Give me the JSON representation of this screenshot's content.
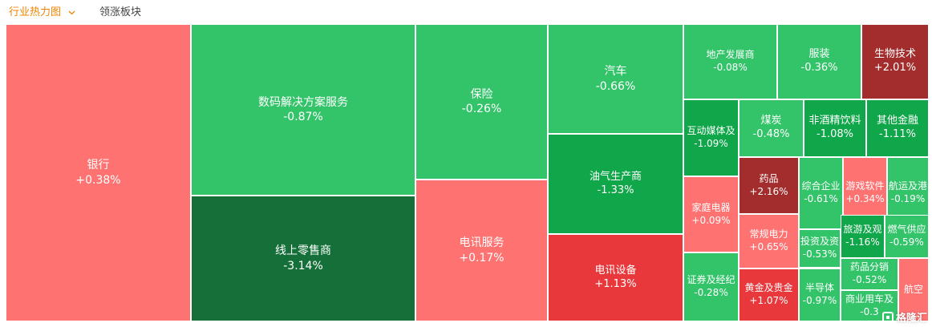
{
  "tabs": {
    "heatmap_label": "行业热力图",
    "leading_label": "领涨板块"
  },
  "colors": {
    "accent": "#f08300",
    "up_strong": "#a32c2c",
    "up_mid": "#e8383c",
    "up_light": "#ff7272",
    "down_light": "#33c46a",
    "down_mid": "#10a64a",
    "down_dark": "#147038"
  },
  "chart_data": {
    "type": "treemap",
    "tiles": [
      {
        "name": "银行",
        "change": "+0.38%",
        "value": 0.38
      },
      {
        "name": "数码解决方案服务",
        "change": "-0.87%",
        "value": -0.87
      },
      {
        "name": "线上零售商",
        "change": "-3.14%",
        "value": -3.14
      },
      {
        "name": "保险",
        "change": "-0.26%",
        "value": -0.26
      },
      {
        "name": "电讯服务",
        "change": "+0.17%",
        "value": 0.17
      },
      {
        "name": "汽车",
        "change": "-0.66%",
        "value": -0.66
      },
      {
        "name": "油气生产商",
        "change": "-1.33%",
        "value": -1.33
      },
      {
        "name": "电讯设备",
        "change": "+1.13%",
        "value": 1.13
      },
      {
        "name": "地产发展商",
        "change": "-0.08%",
        "value": -0.08
      },
      {
        "name": "服装",
        "change": "-0.36%",
        "value": -0.36
      },
      {
        "name": "生物技术",
        "change": "+2.01%",
        "value": 2.01
      },
      {
        "name": "互动媒体及",
        "change": "-1.09%",
        "value": -1.09
      },
      {
        "name": "煤炭",
        "change": "-0.48%",
        "value": -0.48
      },
      {
        "name": "非酒精饮料",
        "change": "-1.08%",
        "value": -1.08
      },
      {
        "name": "其他金融",
        "change": "-1.11%",
        "value": -1.11
      },
      {
        "name": "家庭电器",
        "change": "+0.09%",
        "value": 0.09
      },
      {
        "name": "药品",
        "change": "+2.16%",
        "value": 2.16
      },
      {
        "name": "综合企业",
        "change": "-0.61%",
        "value": -0.61
      },
      {
        "name": "游戏软件",
        "change": "+0.34%",
        "value": 0.34
      },
      {
        "name": "航运及港",
        "change": "-0.19%",
        "value": -0.19
      },
      {
        "name": "常规电力",
        "change": "+0.65%",
        "value": 0.65
      },
      {
        "name": "投资及资",
        "change": "-0.53%",
        "value": -0.53
      },
      {
        "name": "旅游及观",
        "change": "-1.16%",
        "value": -1.16
      },
      {
        "name": "燃气供应",
        "change": "-0.59%",
        "value": -0.59
      },
      {
        "name": "证券及经纪",
        "change": "-0.28%",
        "value": -0.28
      },
      {
        "name": "黄金及贵金",
        "change": "+1.07%",
        "value": 1.07
      },
      {
        "name": "半导体",
        "change": "-0.97%",
        "value": -0.97
      },
      {
        "name": "药品分销",
        "change": "-0.52%",
        "value": -0.52
      },
      {
        "name": "商业用车及",
        "change": "-0.3",
        "value": -0.3
      },
      {
        "name": "航空",
        "change": "",
        "value": null
      }
    ]
  },
  "watermark": {
    "text": "格隆汇"
  }
}
